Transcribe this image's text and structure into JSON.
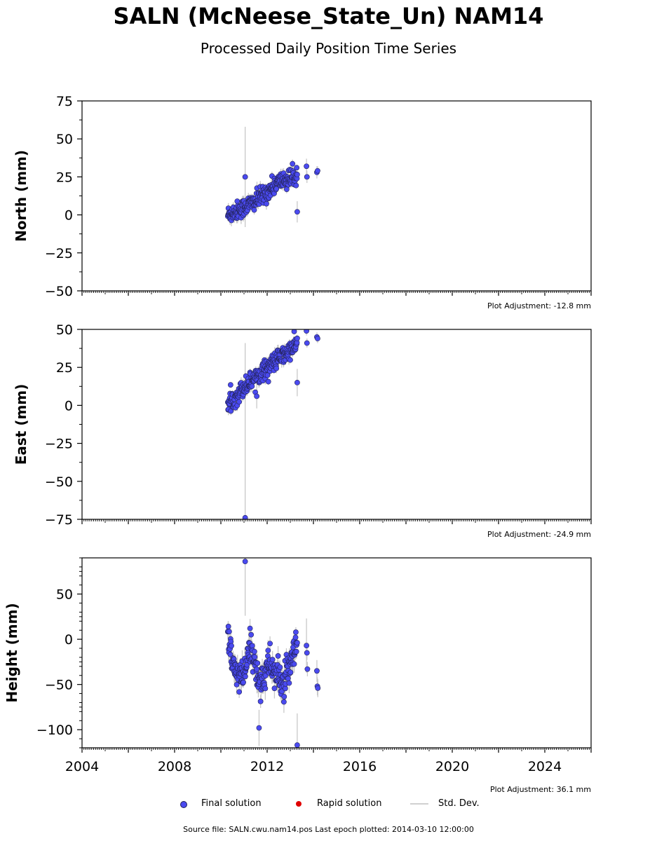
{
  "title": "SALN (McNeese_State_Un) NAM14",
  "subtitle": "Processed Daily Position Time Series",
  "legend": {
    "final": "Final solution",
    "rapid": "Rapid solution",
    "std": "Std. Dev."
  },
  "footer": "Source file: SALN.cwu.nam14.pos  Last epoch plotted: 2014-03-10 12:00:00",
  "colors": {
    "final": "#4a4af0",
    "rapid": "#e00000",
    "std": "#c8c8c8",
    "edge": "#222255"
  },
  "chart_data": [
    {
      "type": "scatter",
      "ylabel": "North (mm)",
      "adjustment": "Plot Adjustment: -12.8 mm",
      "xlim": [
        2004,
        2026
      ],
      "ylim": [
        -50,
        75
      ],
      "yticks": [
        -50,
        -25,
        0,
        25,
        50,
        75
      ],
      "ytick_labels": [
        "−50",
        "−25",
        "0",
        "25",
        "50",
        "75"
      ],
      "trend": [
        [
          2010.3,
          0
        ],
        [
          2011.0,
          5
        ],
        [
          2011.5,
          9
        ],
        [
          2012.0,
          15
        ],
        [
          2012.5,
          22
        ],
        [
          2013.0,
          24
        ],
        [
          2013.3,
          26
        ]
      ],
      "noise": 3,
      "outliers": [
        {
          "x": 2011.05,
          "y": 25,
          "err": 33
        },
        {
          "x": 2013.3,
          "y": 2,
          "err": 7
        },
        {
          "x": 2013.7,
          "y": 32,
          "err": 5
        },
        {
          "x": 2013.72,
          "y": 25,
          "err": 4
        },
        {
          "x": 2014.15,
          "y": 28,
          "err": 4
        },
        {
          "x": 2014.18,
          "y": 29,
          "err": 3
        }
      ]
    },
    {
      "type": "scatter",
      "ylabel": "East (mm)",
      "adjustment": "Plot Adjustment: -24.9 mm",
      "xlim": [
        2004,
        2026
      ],
      "ylim": [
        -75,
        50
      ],
      "yticks": [
        -75,
        -50,
        -25,
        0,
        25,
        50
      ],
      "ytick_labels": [
        "−75",
        "−50",
        "−25",
        "0",
        "25",
        "50"
      ],
      "trend": [
        [
          2010.3,
          0
        ],
        [
          2011.0,
          12
        ],
        [
          2011.5,
          19
        ],
        [
          2012.0,
          25
        ],
        [
          2012.5,
          31
        ],
        [
          2013.0,
          36
        ],
        [
          2013.3,
          41
        ]
      ],
      "noise": 3,
      "outliers": [
        {
          "x": 2011.05,
          "y": -74,
          "err": 115
        },
        {
          "x": 2011.55,
          "y": 6,
          "err": 8
        },
        {
          "x": 2013.3,
          "y": 15,
          "err": 9
        },
        {
          "x": 2013.7,
          "y": 49,
          "err": 3
        },
        {
          "x": 2013.72,
          "y": 41,
          "err": 3
        },
        {
          "x": 2014.15,
          "y": 45,
          "err": 3
        },
        {
          "x": 2014.18,
          "y": 44,
          "err": 3
        }
      ]
    },
    {
      "type": "scatter",
      "ylabel": "Height (mm)",
      "adjustment": "Plot Adjustment: 36.1 mm",
      "xlim": [
        2004,
        2026
      ],
      "ylim": [
        -120,
        90
      ],
      "yticks": [
        -100,
        -50,
        0,
        50
      ],
      "ytick_labels": [
        "−100",
        "−50",
        "0",
        "50"
      ],
      "xticks": [
        2004,
        2008,
        2012,
        2016,
        2020,
        2024
      ],
      "xtick_labels": [
        "2004",
        "2008",
        "2012",
        "2016",
        "2020",
        "2024"
      ],
      "trend": [
        [
          2010.3,
          10
        ],
        [
          2010.5,
          -30
        ],
        [
          2010.9,
          -45
        ],
        [
          2011.1,
          -30
        ],
        [
          2011.3,
          -5
        ],
        [
          2011.6,
          -45
        ],
        [
          2011.9,
          -40
        ],
        [
          2012.1,
          -25
        ],
        [
          2012.4,
          -40
        ],
        [
          2012.7,
          -50
        ],
        [
          2013.0,
          -30
        ],
        [
          2013.3,
          -5
        ]
      ],
      "noise": 9,
      "outliers": [
        {
          "x": 2011.05,
          "y": 86,
          "err": 60
        },
        {
          "x": 2011.65,
          "y": -98,
          "err": 20
        },
        {
          "x": 2013.3,
          "y": -117,
          "err": 35
        },
        {
          "x": 2013.7,
          "y": -7,
          "err": 30
        },
        {
          "x": 2013.72,
          "y": -15,
          "err": 8
        },
        {
          "x": 2013.74,
          "y": -33,
          "err": 8
        },
        {
          "x": 2014.15,
          "y": -35,
          "err": 12
        },
        {
          "x": 2014.17,
          "y": -52,
          "err": 10
        },
        {
          "x": 2014.19,
          "y": -54,
          "err": 10
        }
      ]
    }
  ]
}
